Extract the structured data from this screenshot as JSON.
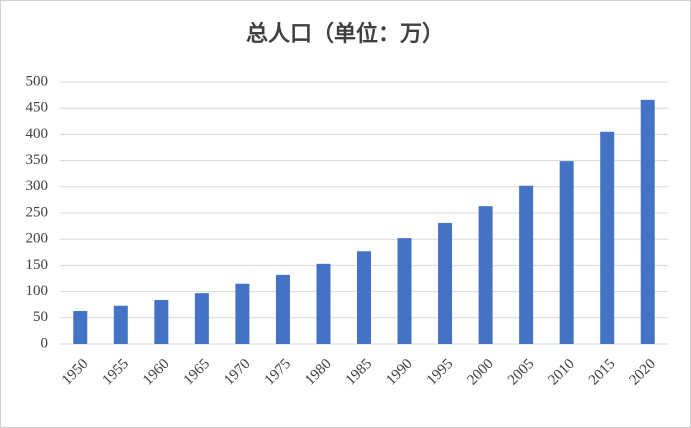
{
  "chart_data": {
    "type": "bar",
    "title": "总人口（单位：万）",
    "categories": [
      "1950",
      "1955",
      "1960",
      "1965",
      "1970",
      "1975",
      "1980",
      "1985",
      "1990",
      "1995",
      "2000",
      "2005",
      "2010",
      "2015",
      "2020"
    ],
    "values": [
      63,
      73,
      84,
      97,
      115,
      132,
      153,
      177,
      202,
      231,
      263,
      302,
      349,
      405,
      466
    ],
    "color": "#4472c4",
    "ylim": [
      0,
      500
    ],
    "yticks": [
      0,
      50,
      100,
      150,
      200,
      250,
      300,
      350,
      400,
      450,
      500
    ],
    "grid": true
  }
}
